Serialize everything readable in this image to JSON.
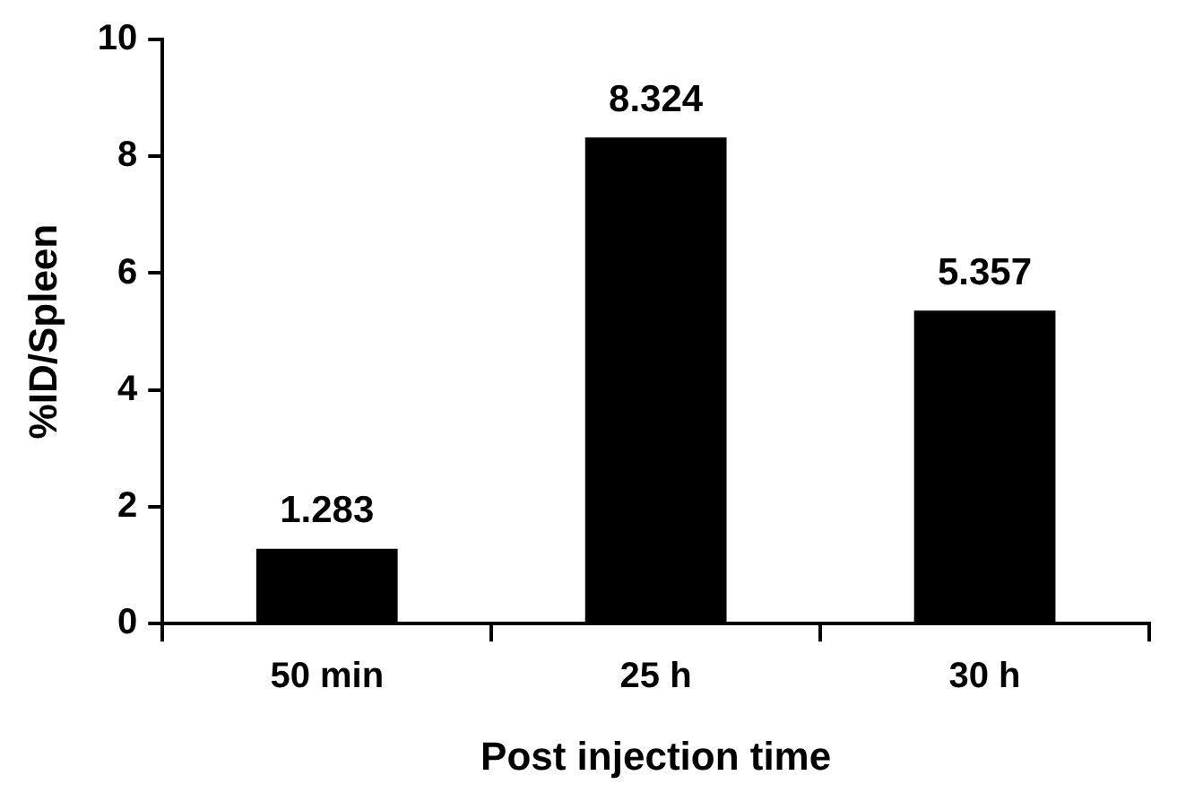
{
  "chart_data": {
    "type": "bar",
    "xlabel": "Post injection time",
    "ylabel": "%ID/Spleen",
    "categories": [
      "50 min",
      "25 h",
      "30 h"
    ],
    "values": [
      1.283,
      8.324,
      5.357
    ],
    "color": "#000000",
    "ylim": [
      0,
      10
    ],
    "yticks": [
      0,
      2,
      4,
      6,
      8,
      10
    ],
    "grid": false,
    "legend": false,
    "data_labels": true
  }
}
